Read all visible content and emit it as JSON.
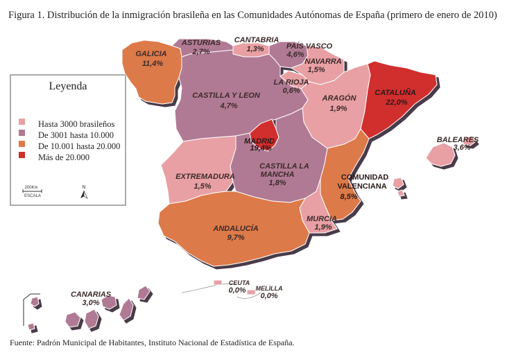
{
  "title": "Figura 1. Distribución de la inmigración brasileña en las Comunidades Autónomas de España (primero de enero de 2010)",
  "source": "Fuente: Padrón Municipal de Habitantes, Instituto Nacional de Estadística de España.",
  "legend": {
    "title": "Leyenda",
    "items": [
      {
        "label": "Hasta 3000 brasileños",
        "color": "#e8a0a4"
      },
      {
        "label": "De 3001 hasta 10.000",
        "color": "#b07a94"
      },
      {
        "label": "De 10.001 hasta 20.000",
        "color": "#dd7a48"
      },
      {
        "label": "Más de 20.000",
        "color": "#d12e2e"
      }
    ],
    "scale_value": "200Km",
    "scale_label": "ESCALA",
    "north_label": "N"
  },
  "colors": {
    "shadow": "#4a3a4a",
    "border": "#ffffff"
  },
  "regions": [
    {
      "name": "GALICIA",
      "value": "11,4%",
      "class": 3
    },
    {
      "name": "ASTURIAS",
      "value": "2,7%",
      "class": 2
    },
    {
      "name": "CANTABRIA",
      "value": "1,3%",
      "class": 1
    },
    {
      "name": "PAÍS VASCO",
      "value": "4,6%",
      "class": 2
    },
    {
      "name": "NAVARRA",
      "value": "1,5%",
      "class": 1
    },
    {
      "name": "LA RIOJA",
      "value": "0,6%",
      "class": 1
    },
    {
      "name": "CASTILLA Y LEON",
      "value": "4,7%",
      "class": 2
    },
    {
      "name": "ARAGÓN",
      "value": "1,9%",
      "class": 1
    },
    {
      "name": "CATALUÑA",
      "value": "22,0%",
      "class": 4
    },
    {
      "name": "MADRID",
      "value": "19,4%",
      "class": 4
    },
    {
      "name": "BALEARES",
      "value": "3,6%",
      "class": 2
    },
    {
      "name": "EXTREMADURA",
      "value": "1,5%",
      "class": 1
    },
    {
      "name": "CASTILLA LA MANCHA",
      "value": "1,8%",
      "class": 1
    },
    {
      "name": "COMUNIDAD VALENCIANA",
      "value": "8,5%",
      "class": 3
    },
    {
      "name": "MURCIA",
      "value": "1,9%",
      "class": 1
    },
    {
      "name": "ANDALUCÍA",
      "value": "9,7%",
      "class": 3
    },
    {
      "name": "CANARIAS",
      "value": "3,0%",
      "class": 2
    },
    {
      "name": "CEUTA",
      "value": "0,0%",
      "class": 1
    },
    {
      "name": "MELILLA",
      "value": "0,0%",
      "class": 1
    }
  ]
}
